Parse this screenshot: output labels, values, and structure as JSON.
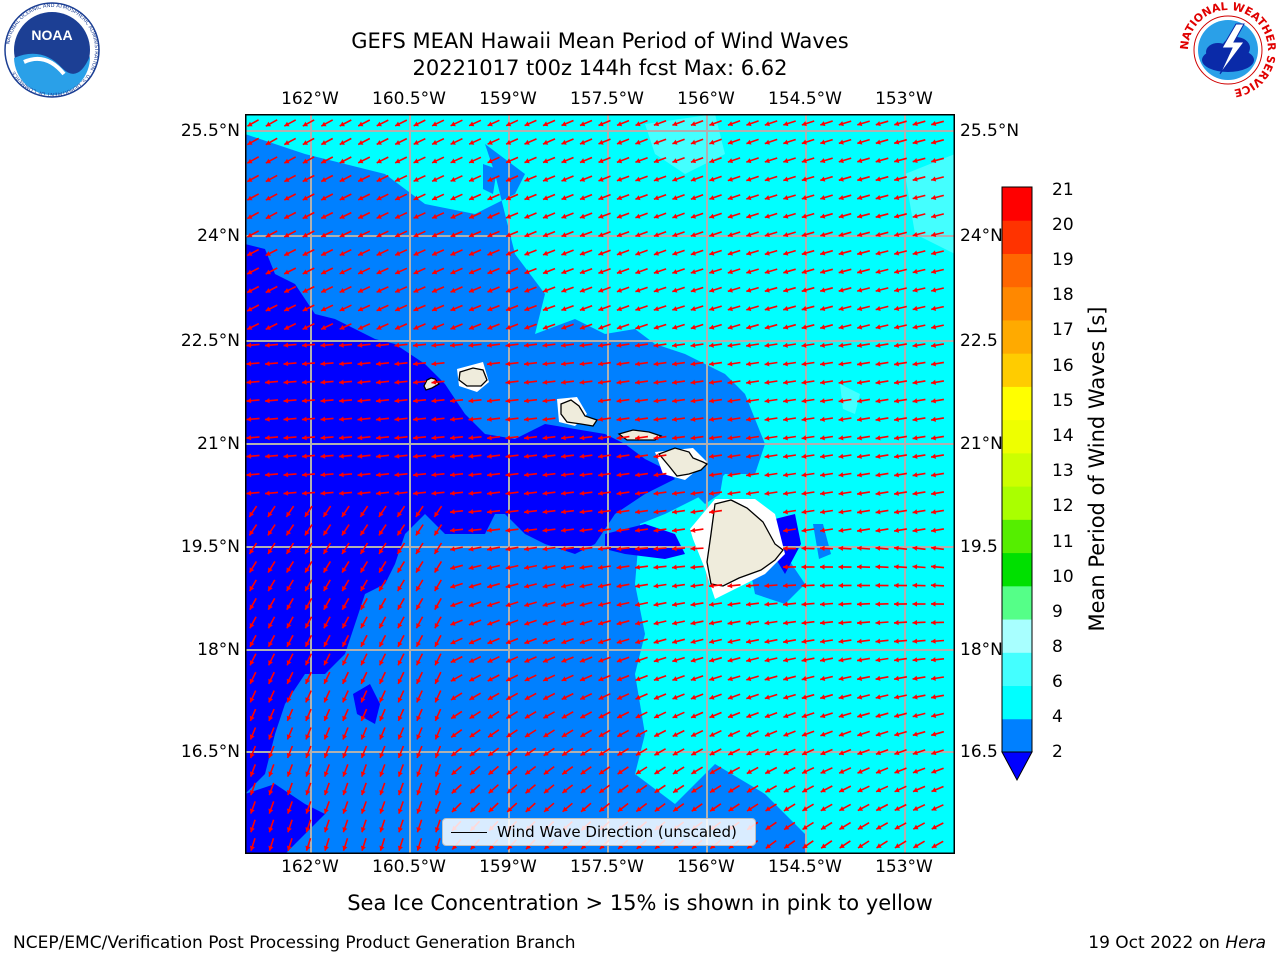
{
  "header": {
    "title_line1": "GEFS MEAN Hawaii Mean Period of Wind Waves",
    "title_line2": "20221017 t00z 144h fcst   Max: 6.62"
  },
  "logos": {
    "noaa": "NOAA",
    "noaa_ring": "NATIONAL OCEANIC AND ATMOSPHERIC ADMINISTRATION · U.S. DEPARTMENT OF COMMERCE",
    "nws_ring": "NATIONAL WEATHER SERVICE"
  },
  "map": {
    "lon_labels": [
      "162°W",
      "160.5°W",
      "159°W",
      "157.5°W",
      "156°W",
      "154.5°W",
      "153°W"
    ],
    "lat_labels_left": [
      "25.5°N",
      "24°N",
      "22.5°N",
      "21°N",
      "19.5°N",
      "18°N",
      "16.5°N"
    ],
    "lat_labels_right": [
      "25.5°N",
      "24°N",
      "22.5",
      "21°N",
      "19.5",
      "18°N",
      "16.5"
    ],
    "legend_label": "Wind Wave Direction (unscaled)",
    "arrow_color": "#ff0000",
    "land_color": "#efecdc",
    "level_colors": {
      "below_2": "#0000ff",
      "2_4": "#0080ff",
      "4_6": "#00ffff"
    }
  },
  "colorbar": {
    "label": "Mean Period of Wind Waves [s]",
    "ticks": [
      "21",
      "20",
      "19",
      "18",
      "17",
      "16",
      "15",
      "14",
      "13",
      "12",
      "11",
      "10",
      "9",
      "8",
      "6",
      "4",
      "2"
    ],
    "colors_bottom_to_top": [
      "#0080ff",
      "#00ffff",
      "#44ffff",
      "#a8ffff",
      "#55ff88",
      "#00e000",
      "#55ee00",
      "#aaff00",
      "#ccff00",
      "#eeff00",
      "#ffff00",
      "#ffcc00",
      "#ffaa00",
      "#ff8800",
      "#ff6600",
      "#ff3300",
      "#ff0000"
    ],
    "extend_color": "#0000ff"
  },
  "caption": "Sea Ice Concentration > 15% is shown in pink to yellow",
  "footer": {
    "left": "NCEP/EMC/Verification Post Processing Product Generation Branch",
    "right_date": "19 Oct 2022 on ",
    "right_host": "Hera"
  }
}
